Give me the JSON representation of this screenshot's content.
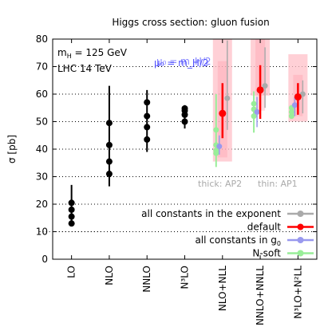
{
  "chart_data": {
    "type": "scatter",
    "title": "Higgs cross section: gluon fusion",
    "ylabel": "σ [pb]",
    "ylim": [
      0,
      80
    ],
    "yticks": [
      0,
      10,
      20,
      30,
      40,
      50,
      60,
      70,
      80
    ],
    "grid": "horizontal dotted",
    "categories": [
      "LO",
      "NLO",
      "NNLO",
      "N³LO",
      "NLO+NLL",
      "NNLO+NNLL",
      "N³LO+N²LL"
    ],
    "annotations": {
      "mass": "m",
      "mass_sub": "H",
      "mass_value": " = 125 GeV",
      "energy": "LHC 14 TeV",
      "scale_a": "μ₀ = m_H/2",
      "scale_b": "μ₀ = m_H/2",
      "thick": "thick: AP2",
      "thin": "thin: AP1"
    },
    "fixed_order": [
      {
        "category": "LO",
        "points": [
          13.0,
          15.5,
          18.0,
          20.5
        ],
        "err": [
          12.0,
          27.0
        ]
      },
      {
        "category": "NLO",
        "points": [
          31.0,
          35.5,
          41.5,
          49.5
        ],
        "err": [
          26.5,
          63.0
        ]
      },
      {
        "category": "NNLO",
        "points": [
          43.5,
          48.0,
          52.0,
          57.0
        ],
        "err": [
          39.0,
          61.5
        ]
      },
      {
        "category": "N³LO",
        "points": [
          50.0,
          52.5,
          54.0,
          54.8
        ],
        "err": [
          47.5,
          56.0
        ]
      }
    ],
    "legend": {
      "placement": "bottom-right",
      "entries": [
        {
          "label": "all constants in the exponent",
          "color": "#aaaaaa"
        },
        {
          "label": "default",
          "color": "#ff0000"
        },
        {
          "label": "all constants in g",
          "label_sub": "0",
          "color": "#9999ee"
        },
        {
          "label": "N-soft",
          "color": "#99ee99"
        }
      ]
    },
    "resummed": [
      {
        "category": "NLO+NLL",
        "band": [
          35.5,
          80.0
        ],
        "band_inner": [
          37.0,
          72.0
        ],
        "series": {
          "N-soft": {
            "points": [
              38.5,
              39.5,
              41.5,
              47.0
            ],
            "err": [
              33.5,
              60.0
            ]
          },
          "constants_g0": {
            "value": 41.0,
            "err": [
              38.0,
              45.0
            ]
          },
          "default": {
            "value": 53.0,
            "err": [
              44.0,
              64.0
            ]
          },
          "exponent": {
            "value": 58.5,
            "err": [
              47.0,
              79.5
            ]
          }
        }
      },
      {
        "category": "NNLO+NNLL",
        "band": [
          59.5,
          80.0
        ],
        "band_inner": [
          54.0,
          80.0
        ],
        "series": {
          "N-soft": {
            "points": [
              52.0,
              54.5,
              56.5
            ],
            "err": [
              46.0,
              61.0
            ]
          },
          "constants_g0": {
            "value": 53.5,
            "err": [
              48.0,
              59.0
            ]
          },
          "default": {
            "value": 61.5,
            "err": [
              51.0,
              70.5
            ]
          },
          "exponent": {
            "value": 63.0,
            "err": [
              55.0,
              77.0
            ]
          }
        }
      },
      {
        "category": "N³LO+N²LL",
        "band": [
          50.0,
          74.5
        ],
        "band_inner": [
          52.0,
          67.0
        ],
        "series": {
          "N-soft": {
            "points": [
              52.0,
              53.5,
              55.0
            ],
            "err": [
              51.0,
              56.0
            ]
          },
          "constants_g0": {
            "value": 56.0,
            "err": [
              52.0,
              59.0
            ]
          },
          "default": {
            "value": 59.0,
            "err": [
              52.5,
              64.0
            ]
          },
          "exponent": {
            "value": 60.0,
            "err": [
              53.0,
              65.0
            ]
          }
        }
      }
    ]
  }
}
